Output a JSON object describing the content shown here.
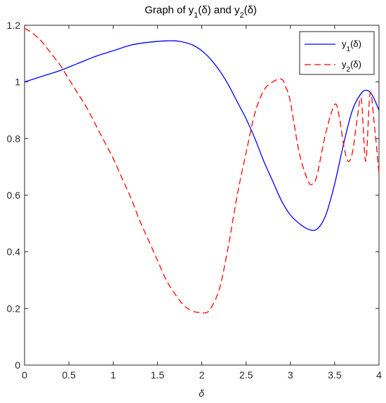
{
  "chart_data": {
    "type": "line",
    "title": {
      "prefix": "Graph of ",
      "y1_base": "y",
      "y1_sub": "1",
      "y1_arg": "(δ)",
      "joiner": " and ",
      "y2_base": "y",
      "y2_sub": "2",
      "y2_arg": "(δ)"
    },
    "xlabel": "δ",
    "ylabel": "",
    "xlim": [
      0,
      4
    ],
    "ylim": [
      0,
      1.2
    ],
    "xticks": [
      0,
      0.5,
      1,
      1.5,
      2,
      2.5,
      3,
      3.5,
      4
    ],
    "xtick_labels": [
      "0",
      "0.5",
      "1",
      "1.5",
      "2",
      "2.5",
      "3",
      "3.5",
      "4"
    ],
    "yticks": [
      0,
      0.2,
      0.4,
      0.6,
      0.8,
      1,
      1.2
    ],
    "ytick_labels": [
      "0",
      "0.2",
      "0.4",
      "0.6",
      "0.8",
      "1",
      "1.2"
    ],
    "grid": false,
    "legend_position": "top-right",
    "series": [
      {
        "key": "y1",
        "legend_base": "y",
        "legend_sub": "1",
        "legend_arg": "(δ)",
        "color": "#0000ff",
        "dash": "solid",
        "x": [
          0,
          0.2,
          0.4,
          0.6,
          0.8,
          1.0,
          1.2,
          1.4,
          1.6,
          1.7,
          1.8,
          1.9,
          2.0,
          2.1,
          2.2,
          2.3,
          2.4,
          2.5,
          2.6,
          2.7,
          2.8,
          2.9,
          3.0,
          3.1,
          3.2,
          3.3,
          3.4,
          3.5,
          3.6,
          3.7,
          3.8,
          3.87,
          3.93,
          4.0
        ],
        "y": [
          1.0,
          1.02,
          1.04,
          1.065,
          1.09,
          1.11,
          1.13,
          1.14,
          1.145,
          1.145,
          1.14,
          1.13,
          1.11,
          1.08,
          1.04,
          0.99,
          0.93,
          0.87,
          0.8,
          0.72,
          0.65,
          0.58,
          0.53,
          0.5,
          0.48,
          0.48,
          0.53,
          0.64,
          0.78,
          0.9,
          0.96,
          0.97,
          0.95,
          0.9
        ]
      },
      {
        "key": "y2",
        "legend_base": "y",
        "legend_sub": "2",
        "legend_arg": "(δ)",
        "color": "#ff0000",
        "dash": "dashed",
        "x": [
          0,
          0.1,
          0.2,
          0.3,
          0.4,
          0.5,
          0.6,
          0.7,
          0.8,
          0.9,
          1.0,
          1.1,
          1.2,
          1.3,
          1.4,
          1.5,
          1.6,
          1.7,
          1.8,
          1.9,
          2.0,
          2.05,
          2.1,
          2.2,
          2.3,
          2.4,
          2.5,
          2.6,
          2.7,
          2.8,
          2.9,
          2.95,
          3.0,
          3.1,
          3.2,
          3.25,
          3.3,
          3.4,
          3.5,
          3.55,
          3.6,
          3.65,
          3.7,
          3.75,
          3.8,
          3.85,
          3.9,
          3.95,
          4.0
        ],
        "y": [
          1.19,
          1.17,
          1.14,
          1.1,
          1.06,
          1.01,
          0.96,
          0.91,
          0.85,
          0.79,
          0.73,
          0.66,
          0.59,
          0.51,
          0.44,
          0.37,
          0.3,
          0.25,
          0.21,
          0.19,
          0.185,
          0.185,
          0.2,
          0.27,
          0.42,
          0.6,
          0.75,
          0.89,
          0.97,
          1.0,
          1.01,
          0.98,
          0.93,
          0.75,
          0.65,
          0.64,
          0.67,
          0.82,
          0.92,
          0.88,
          0.78,
          0.72,
          0.75,
          0.86,
          0.94,
          0.72,
          0.96,
          0.84,
          0.68
        ]
      }
    ]
  }
}
